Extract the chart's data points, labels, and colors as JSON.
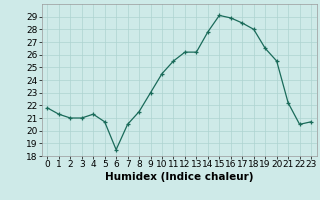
{
  "x": [
    0,
    1,
    2,
    3,
    4,
    5,
    6,
    7,
    8,
    9,
    10,
    11,
    12,
    13,
    14,
    15,
    16,
    17,
    18,
    19,
    20,
    21,
    22,
    23
  ],
  "y": [
    21.8,
    21.3,
    21.0,
    21.0,
    21.3,
    20.7,
    18.5,
    20.5,
    21.5,
    23.0,
    24.5,
    25.5,
    26.2,
    26.2,
    27.8,
    29.1,
    28.9,
    28.5,
    28.0,
    26.5,
    25.5,
    22.2,
    20.5,
    20.7
  ],
  "xlabel": "Humidex (Indice chaleur)",
  "xlim": [
    -0.5,
    23.5
  ],
  "ylim": [
    18,
    30
  ],
  "yticks": [
    18,
    19,
    20,
    21,
    22,
    23,
    24,
    25,
    26,
    27,
    28,
    29
  ],
  "xticks": [
    0,
    1,
    2,
    3,
    4,
    5,
    6,
    7,
    8,
    9,
    10,
    11,
    12,
    13,
    14,
    15,
    16,
    17,
    18,
    19,
    20,
    21,
    22,
    23
  ],
  "line_color": "#1a6b5a",
  "marker": "+",
  "bg_color": "#ceeae8",
  "grid_color": "#aed4d0",
  "label_fontsize": 7.5,
  "tick_fontsize": 6.5
}
